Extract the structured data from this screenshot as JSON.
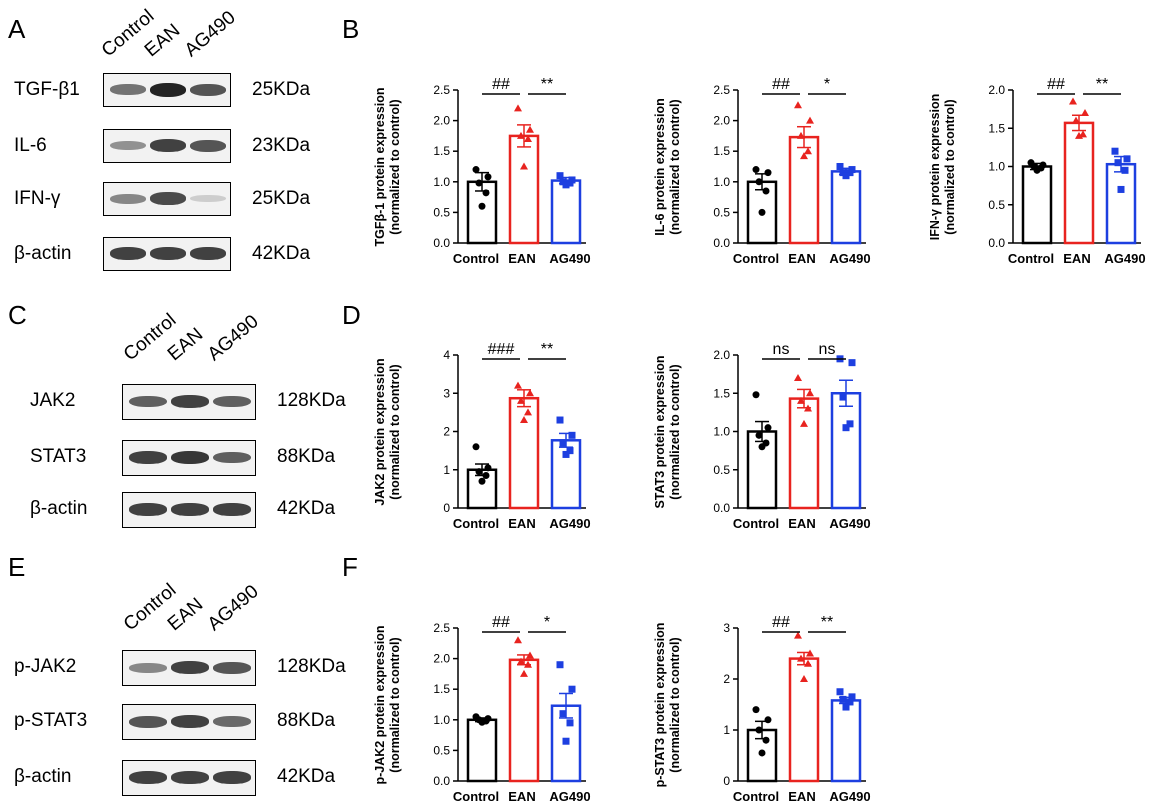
{
  "panels": {
    "A": "A",
    "B": "B",
    "C": "C",
    "D": "D",
    "E": "E",
    "F": "F"
  },
  "lanes": [
    "Control",
    "EAN",
    "AG490"
  ],
  "blots": [
    {
      "panel": "A",
      "rows": [
        {
          "label": "TGF-β1",
          "size": "25KDa",
          "bands": [
            0.6,
            1.0,
            0.75
          ]
        },
        {
          "label": "IL-6",
          "size": "23KDa",
          "bands": [
            0.45,
            0.85,
            0.75
          ]
        },
        {
          "label": "IFN-γ",
          "size": "25KDa",
          "bands": [
            0.5,
            0.8,
            0.15
          ]
        },
        {
          "label": "β-actin",
          "size": "42KDa",
          "bands": [
            0.85,
            0.85,
            0.85
          ]
        }
      ]
    },
    {
      "panel": "C",
      "rows": [
        {
          "label": "JAK2",
          "size": "128KDa",
          "bands": [
            0.7,
            0.85,
            0.7
          ]
        },
        {
          "label": "STAT3",
          "size": "88KDa",
          "bands": [
            0.85,
            0.9,
            0.7
          ]
        },
        {
          "label": "β-actin",
          "size": "42KDa",
          "bands": [
            0.85,
            0.85,
            0.85
          ]
        }
      ]
    },
    {
      "panel": "E",
      "rows": [
        {
          "label": "p-JAK2",
          "size": "128KDa",
          "bands": [
            0.5,
            0.85,
            0.75
          ]
        },
        {
          "label": "p-STAT3",
          "size": "88KDa",
          "bands": [
            0.75,
            0.85,
            0.65
          ]
        },
        {
          "label": "β-actin",
          "size": "42KDa",
          "bands": [
            0.85,
            0.85,
            0.85
          ]
        }
      ]
    }
  ],
  "colors": {
    "Control": "#000000",
    "EAN": "#e8231f",
    "AG490": "#1d3fe0"
  },
  "chart_data": [
    {
      "type": "bar",
      "panel": "B",
      "categories": [
        "Control",
        "EAN",
        "AG490"
      ],
      "values": [
        1.0,
        1.75,
        1.02
      ],
      "sem": [
        0.15,
        0.18,
        0.05
      ],
      "points": [
        [
          1.2,
          1.08,
          0.98,
          0.82,
          0.6
        ],
        [
          2.2,
          1.85,
          1.75,
          1.7,
          1.25
        ],
        [
          1.1,
          1.03,
          1.0,
          0.98,
          0.95
        ]
      ],
      "ylabel": [
        "TGFβ-1 protein expression",
        "(normalized to control)"
      ],
      "ylim": [
        0,
        2.5
      ],
      "yticks": [
        0,
        0.5,
        1.0,
        1.5,
        2.0,
        2.5
      ],
      "tick_labels": [
        "0.0",
        "0.5",
        "1.0",
        "1.5",
        "2.0",
        "2.5"
      ],
      "annotations": [
        {
          "text": "##",
          "pair": [
            0,
            1
          ]
        },
        {
          "text": "**",
          "pair": [
            1,
            2
          ]
        }
      ]
    },
    {
      "type": "bar",
      "panel": "B",
      "categories": [
        "Control",
        "EAN",
        "AG490"
      ],
      "values": [
        1.0,
        1.73,
        1.17
      ],
      "sem": [
        0.13,
        0.17,
        0.05
      ],
      "points": [
        [
          1.2,
          1.15,
          1.0,
          0.85,
          0.5
        ],
        [
          2.25,
          2.0,
          1.75,
          1.5,
          1.42
        ],
        [
          1.25,
          1.2,
          1.15,
          1.15,
          1.1
        ]
      ],
      "ylabel": [
        "IL-6 protein expression",
        "(normalized to control)"
      ],
      "ylim": [
        0,
        2.5
      ],
      "yticks": [
        0,
        0.5,
        1.0,
        1.5,
        2.0,
        2.5
      ],
      "tick_labels": [
        "0.0",
        "0.5",
        "1.0",
        "1.5",
        "2.0",
        "2.5"
      ],
      "annotations": [
        {
          "text": "##",
          "pair": [
            0,
            1
          ]
        },
        {
          "text": "*",
          "pair": [
            1,
            2
          ]
        }
      ]
    },
    {
      "type": "bar",
      "panel": "B",
      "categories": [
        "Control",
        "EAN",
        "AG490"
      ],
      "values": [
        1.0,
        1.57,
        1.03
      ],
      "sem": [
        0.04,
        0.1,
        0.1
      ],
      "points": [
        [
          1.05,
          1.02,
          1.0,
          0.98,
          0.95
        ],
        [
          1.85,
          1.7,
          1.6,
          1.42,
          1.4
        ],
        [
          1.2,
          1.1,
          1.05,
          0.95,
          0.7
        ]
      ],
      "ylabel": [
        "IFN-γ protein expression",
        "(normalized to control)"
      ],
      "ylim": [
        0,
        2.0
      ],
      "yticks": [
        0,
        0.5,
        1.0,
        1.5,
        2.0
      ],
      "tick_labels": [
        "0.0",
        "0.5",
        "1.0",
        "1.5",
        "2.0"
      ],
      "annotations": [
        {
          "text": "##",
          "pair": [
            0,
            1
          ]
        },
        {
          "text": "**",
          "pair": [
            1,
            2
          ]
        }
      ]
    },
    {
      "type": "bar",
      "panel": "D",
      "categories": [
        "Control",
        "EAN",
        "AG490"
      ],
      "values": [
        1.0,
        2.87,
        1.77
      ],
      "sem": [
        0.15,
        0.22,
        0.18
      ],
      "points": [
        [
          1.6,
          1.05,
          0.95,
          0.85,
          0.7
        ],
        [
          3.2,
          3.0,
          2.8,
          2.5,
          2.3
        ],
        [
          2.3,
          1.9,
          1.7,
          1.5,
          1.4
        ]
      ],
      "ylabel": [
        "JAK2 protein expression",
        "(normalized to control)"
      ],
      "ylim": [
        0,
        4
      ],
      "yticks": [
        0,
        1,
        2,
        3,
        4
      ],
      "tick_labels": [
        "0",
        "1",
        "2",
        "3",
        "4"
      ],
      "annotations": [
        {
          "text": "###",
          "pair": [
            0,
            1
          ]
        },
        {
          "text": "**",
          "pair": [
            1,
            2
          ]
        }
      ]
    },
    {
      "type": "bar",
      "panel": "D",
      "categories": [
        "Control",
        "EAN",
        "AG490"
      ],
      "values": [
        1.0,
        1.43,
        1.5
      ],
      "sem": [
        0.13,
        0.12,
        0.17
      ],
      "points": [
        [
          1.48,
          1.05,
          0.95,
          0.85,
          0.8
        ],
        [
          1.7,
          1.5,
          1.4,
          1.3,
          1.1
        ],
        [
          1.95,
          1.9,
          1.45,
          1.1,
          1.05
        ]
      ],
      "ylabel": [
        "STAT3 protein expression",
        "(normalized to control)"
      ],
      "ylim": [
        0,
        2.0
      ],
      "yticks": [
        0,
        0.5,
        1.0,
        1.5,
        2.0
      ],
      "tick_labels": [
        "0.0",
        "0.5",
        "1.0",
        "1.5",
        "2.0"
      ],
      "annotations": [
        {
          "text": "ns",
          "pair": [
            0,
            1
          ]
        },
        {
          "text": "ns",
          "pair": [
            1,
            2
          ]
        }
      ]
    },
    {
      "type": "bar",
      "panel": "F",
      "categories": [
        "Control",
        "EAN",
        "AG490"
      ],
      "values": [
        1.0,
        1.98,
        1.23
      ],
      "sem": [
        0.03,
        0.08,
        0.2
      ],
      "points": [
        [
          1.05,
          1.02,
          1.0,
          0.98,
          0.96
        ],
        [
          2.3,
          2.05,
          1.95,
          1.9,
          1.75
        ],
        [
          1.9,
          1.5,
          1.1,
          0.95,
          0.65
        ]
      ],
      "ylabel": [
        "p-JAK2 protein expression",
        "(normalized to control)"
      ],
      "ylim": [
        0,
        2.5
      ],
      "yticks": [
        0,
        0.5,
        1.0,
        1.5,
        2.0,
        2.5
      ],
      "tick_labels": [
        "0.0",
        "0.5",
        "1.0",
        "1.5",
        "2.0",
        "2.5"
      ],
      "annotations": [
        {
          "text": "##",
          "pair": [
            0,
            1
          ]
        },
        {
          "text": "*",
          "pair": [
            1,
            2
          ]
        }
      ]
    },
    {
      "type": "bar",
      "panel": "F",
      "categories": [
        "Control",
        "EAN",
        "AG490"
      ],
      "values": [
        1.0,
        2.4,
        1.58
      ],
      "sem": [
        0.17,
        0.12,
        0.06
      ],
      "points": [
        [
          1.4,
          1.2,
          1.0,
          0.8,
          0.55
        ],
        [
          2.85,
          2.5,
          2.4,
          2.3,
          2.0
        ],
        [
          1.75,
          1.65,
          1.6,
          1.55,
          1.45
        ]
      ],
      "ylabel": [
        "p-STAT3 protein expression",
        "(normalized to control)"
      ],
      "ylim": [
        0,
        3
      ],
      "yticks": [
        0,
        1,
        2,
        3
      ],
      "tick_labels": [
        "0",
        "1",
        "2",
        "3"
      ],
      "annotations": [
        {
          "text": "##",
          "pair": [
            0,
            1
          ]
        },
        {
          "text": "**",
          "pair": [
            1,
            2
          ]
        }
      ]
    }
  ]
}
